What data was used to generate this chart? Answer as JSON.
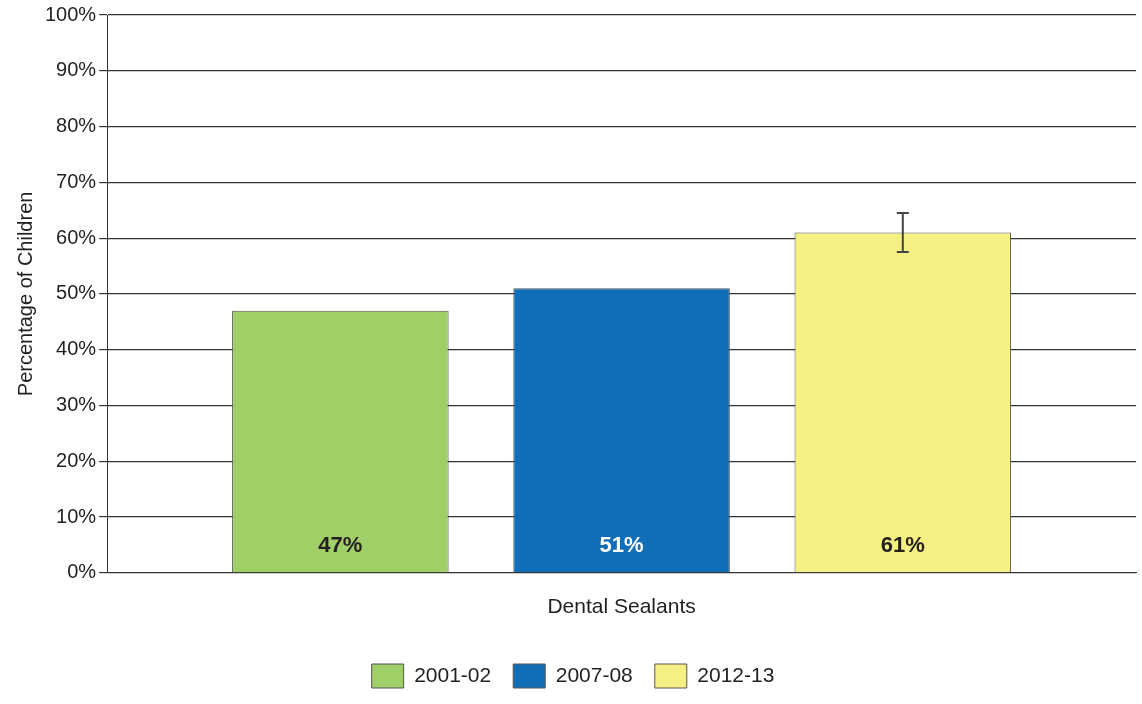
{
  "chart_data": {
    "type": "bar",
    "ylabel": "Percentage of Children",
    "categories": [
      "Dental Sealants"
    ],
    "series": [
      {
        "name": "2001-02",
        "color": "#a0cf67",
        "values": [
          47
        ],
        "value_labels": [
          "47%"
        ]
      },
      {
        "name": "2007-08",
        "color": "#106db7",
        "values": [
          51
        ],
        "value_labels": [
          "51%"
        ]
      },
      {
        "name": "2012-13",
        "color": "#f5f083",
        "values": [
          61
        ],
        "errors": [
          [
            57.5,
            64.5
          ]
        ],
        "value_labels": [
          "61%"
        ]
      }
    ],
    "ylim": [
      0,
      100
    ],
    "yticks": [
      {
        "value": 0,
        "label": "0%"
      },
      {
        "value": 10,
        "label": "10%"
      },
      {
        "value": 20,
        "label": "20%"
      },
      {
        "value": 30,
        "label": "30%"
      },
      {
        "value": 40,
        "label": "40%"
      },
      {
        "value": 50,
        "label": "50%"
      },
      {
        "value": 60,
        "label": "60%"
      },
      {
        "value": 70,
        "label": "70%"
      },
      {
        "value": 80,
        "label": "80%"
      },
      {
        "value": 90,
        "label": "90%"
      },
      {
        "value": 100,
        "label": "100%"
      }
    ],
    "grid": "y",
    "legend": "bottom"
  }
}
